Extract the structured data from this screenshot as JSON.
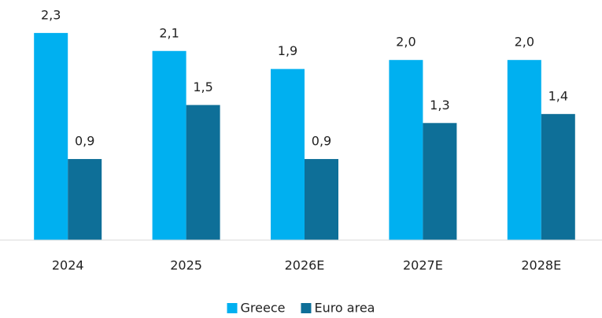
{
  "chart_data": {
    "type": "bar",
    "categories": [
      "2024",
      "2025",
      "2026E",
      "2027E",
      "2028E"
    ],
    "series": [
      {
        "name": "Greece",
        "color": "#00b0f0",
        "values": [
          2.3,
          2.1,
          1.9,
          2.0,
          2.0
        ],
        "value_labels": [
          "2,3",
          "2,1",
          "1,9",
          "2,0",
          "2,0"
        ]
      },
      {
        "name": "Euro area",
        "color": "#0e6f98",
        "values": [
          0.9,
          1.5,
          0.9,
          1.3,
          1.4
        ],
        "value_labels": [
          "0,9",
          "1,5",
          "0,9",
          "1,3",
          "1,4"
        ]
      }
    ],
    "ylim": [
      0,
      2.5
    ],
    "legend": "bottom"
  }
}
